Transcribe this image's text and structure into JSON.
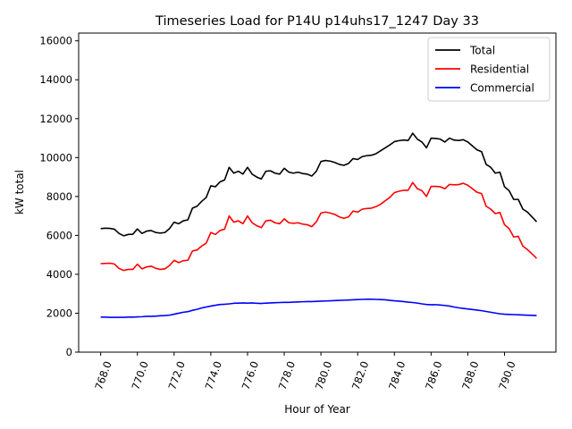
{
  "chart_data": {
    "type": "line",
    "title": "Timeseries Load for P14U p14uhs17_1247  Day 33",
    "xlabel": "Hour of Year",
    "ylabel": "kW total",
    "xlim": [
      766.8,
      792.8
    ],
    "ylim": [
      0,
      16400
    ],
    "x_ticks": [
      768,
      770,
      772,
      774,
      776,
      778,
      780,
      782,
      784,
      786,
      788,
      790
    ],
    "x_tick_labels": [
      "768.0",
      "770.0",
      "772.0",
      "774.0",
      "776.0",
      "778.0",
      "780.0",
      "782.0",
      "784.0",
      "786.0",
      "788.0",
      "790.0"
    ],
    "y_ticks": [
      0,
      2000,
      4000,
      6000,
      8000,
      10000,
      12000,
      14000,
      16000
    ],
    "y_tick_labels": [
      "0",
      "2000",
      "4000",
      "6000",
      "8000",
      "10000",
      "12000",
      "14000",
      "16000"
    ],
    "grid": false,
    "legend_position": "top-right",
    "x_start": 768,
    "x_step": 0.25,
    "series": [
      {
        "name": "Total",
        "color": "#000000",
        "values": [
          6350,
          6370,
          6360,
          6320,
          6100,
          5980,
          6050,
          6060,
          6330,
          6100,
          6220,
          6250,
          6150,
          6120,
          6150,
          6350,
          6680,
          6600,
          6750,
          6800,
          7400,
          7500,
          7750,
          7950,
          8550,
          8500,
          8750,
          8850,
          9500,
          9200,
          9300,
          9150,
          9500,
          9150,
          9000,
          8900,
          9300,
          9320,
          9200,
          9150,
          9450,
          9250,
          9200,
          9250,
          9180,
          9150,
          9050,
          9300,
          9800,
          9850,
          9820,
          9750,
          9650,
          9600,
          9700,
          9950,
          9900,
          10050,
          10100,
          10120,
          10200,
          10350,
          10500,
          10650,
          10820,
          10870,
          10900,
          10880,
          11250,
          10950,
          10800,
          10500,
          11000,
          10980,
          10950,
          10800,
          11000,
          10900,
          10880,
          10920,
          10800,
          10600,
          10400,
          10300,
          9650,
          9500,
          9200,
          9250,
          8500,
          8300,
          7850,
          7850,
          7350,
          7200,
          6950,
          6700
        ]
      },
      {
        "name": "Residential",
        "color": "#ff0000",
        "values": [
          4550,
          4560,
          4570,
          4530,
          4300,
          4200,
          4250,
          4250,
          4520,
          4280,
          4380,
          4420,
          4310,
          4250,
          4280,
          4450,
          4720,
          4600,
          4700,
          4720,
          5200,
          5250,
          5450,
          5600,
          6150,
          6050,
          6250,
          6320,
          7000,
          6680,
          6750,
          6600,
          7000,
          6650,
          6500,
          6400,
          6750,
          6780,
          6650,
          6600,
          6850,
          6650,
          6620,
          6650,
          6580,
          6550,
          6450,
          6700,
          7150,
          7200,
          7150,
          7080,
          6950,
          6880,
          6950,
          7250,
          7200,
          7350,
          7380,
          7400,
          7480,
          7600,
          7780,
          7950,
          8200,
          8270,
          8320,
          8320,
          8720,
          8400,
          8300,
          8000,
          8520,
          8520,
          8500,
          8400,
          8620,
          8600,
          8610,
          8680,
          8580,
          8400,
          8220,
          8150,
          7500,
          7350,
          7120,
          7180,
          6550,
          6350,
          5920,
          5950,
          5450,
          5270,
          5050,
          4820
        ]
      },
      {
        "name": "Commercial",
        "color": "#0000ff",
        "values": [
          1800,
          1800,
          1790,
          1790,
          1790,
          1790,
          1800,
          1800,
          1810,
          1820,
          1840,
          1840,
          1850,
          1870,
          1880,
          1900,
          1950,
          2000,
          2050,
          2080,
          2150,
          2200,
          2270,
          2320,
          2370,
          2410,
          2450,
          2460,
          2480,
          2510,
          2520,
          2530,
          2520,
          2530,
          2510,
          2500,
          2520,
          2530,
          2540,
          2550,
          2560,
          2560,
          2570,
          2580,
          2590,
          2600,
          2600,
          2610,
          2620,
          2630,
          2640,
          2650,
          2660,
          2670,
          2680,
          2690,
          2700,
          2710,
          2720,
          2720,
          2710,
          2700,
          2690,
          2660,
          2640,
          2620,
          2600,
          2570,
          2550,
          2520,
          2480,
          2450,
          2440,
          2440,
          2420,
          2400,
          2370,
          2320,
          2280,
          2250,
          2220,
          2190,
          2160,
          2130,
          2090,
          2050,
          2010,
          1970,
          1950,
          1940,
          1930,
          1920,
          1910,
          1900,
          1890,
          1880
        ]
      }
    ]
  }
}
